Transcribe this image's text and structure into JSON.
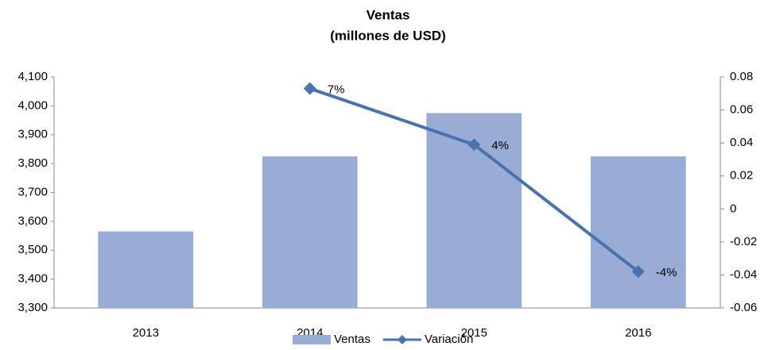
{
  "chart_data": {
    "type": "bar_line",
    "title": "Ventas",
    "subtitle": "(millones de USD)",
    "categories": [
      "2013",
      "2014",
      "2015",
      "2016"
    ],
    "series": [
      {
        "name": "Ventas",
        "color": "#98acd6",
        "type": "bar",
        "values": [
          3565,
          3825,
          3975,
          3825
        ]
      },
      {
        "name": "Variación",
        "color": "#4a72ac",
        "type": "line",
        "axis": "y2",
        "values": [
          null,
          0.073,
          0.039,
          -0.038
        ],
        "value_labels": [
          null,
          "7%",
          "4%",
          "-4%"
        ]
      }
    ],
    "ylim": [
      3300,
      4100
    ],
    "yticks": [
      {
        "value": 3300,
        "label": "3,300"
      },
      {
        "value": 3400,
        "label": "3,400"
      },
      {
        "value": 3500,
        "label": "3,500"
      },
      {
        "value": 3600,
        "label": "3,600"
      },
      {
        "value": 3700,
        "label": "3,700"
      },
      {
        "value": 3800,
        "label": "3,800"
      },
      {
        "value": 3900,
        "label": "3,900"
      },
      {
        "value": 4000,
        "label": "4,000"
      },
      {
        "value": 4100,
        "label": "4,100"
      }
    ],
    "y2lim": [
      -0.06,
      0.08
    ],
    "y2ticks": [
      -0.06,
      -0.04,
      -0.02,
      0,
      0.02,
      0.04,
      0.06,
      0.08
    ],
    "legend": "bottom"
  }
}
